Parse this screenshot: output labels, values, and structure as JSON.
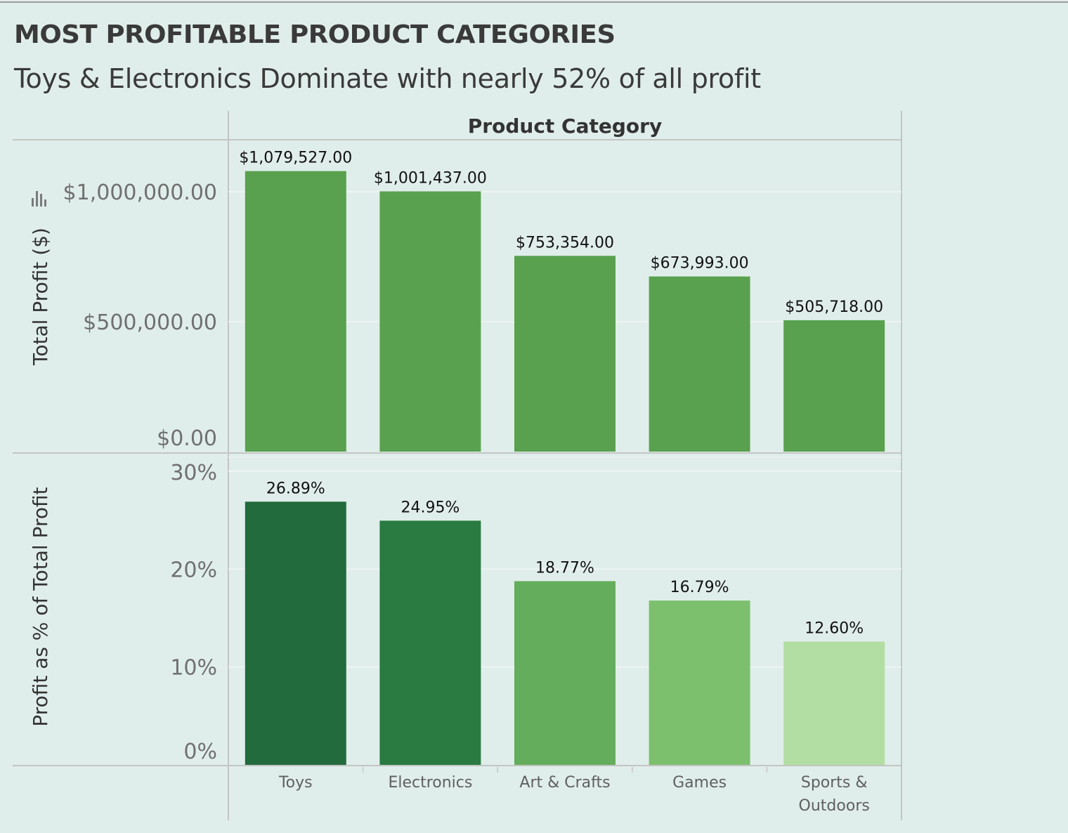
{
  "title": "Most Profitable Product Categories",
  "subtitle": "Toys & Electronics Dominate with nearly 52% of all profit",
  "column_header": "Product Category",
  "colors": {
    "background": "#e0eeeb",
    "profit_bar": "#5aa14f",
    "percent_bars": [
      "#226b3d",
      "#2a7b42",
      "#64ad5c",
      "#7cc06e",
      "#b2dea3"
    ]
  },
  "chart_data": [
    {
      "type": "bar",
      "categories": [
        "Toys",
        "Electronics",
        "Art & Crafts",
        "Games",
        "Sports & Outdoors"
      ],
      "category_lines": [
        [
          "Toys"
        ],
        [
          "Electronics"
        ],
        [
          "Art & Crafts"
        ],
        [
          "Games"
        ],
        [
          "Sports &",
          "Outdoors"
        ]
      ],
      "values": [
        1079527,
        1001437,
        753354,
        673993,
        505718
      ],
      "data_labels": [
        "$1,079,527.00",
        "$1,001,437.00",
        "$753,354.00",
        "$673,993.00",
        "$505,718.00"
      ],
      "ylabel": "Total Profit ($)",
      "ylim": [
        0,
        1200000
      ],
      "yticks": [
        0,
        500000,
        1000000
      ],
      "ytick_labels": [
        "$0.00",
        "$500,000.00",
        "$1,000,000.00"
      ],
      "grid": true
    },
    {
      "type": "bar",
      "categories": [
        "Toys",
        "Electronics",
        "Art & Crafts",
        "Games",
        "Sports & Outdoors"
      ],
      "values": [
        26.89,
        24.95,
        18.77,
        16.79,
        12.6
      ],
      "data_labels": [
        "26.89%",
        "24.95%",
        "18.77%",
        "16.79%",
        "12.60%"
      ],
      "ylabel": "Profit as % of Total Profit",
      "ylim": [
        0,
        31
      ],
      "yticks": [
        0,
        10,
        20,
        30
      ],
      "ytick_labels": [
        "0%",
        "10%",
        "20%",
        "30%"
      ],
      "grid": true
    }
  ]
}
